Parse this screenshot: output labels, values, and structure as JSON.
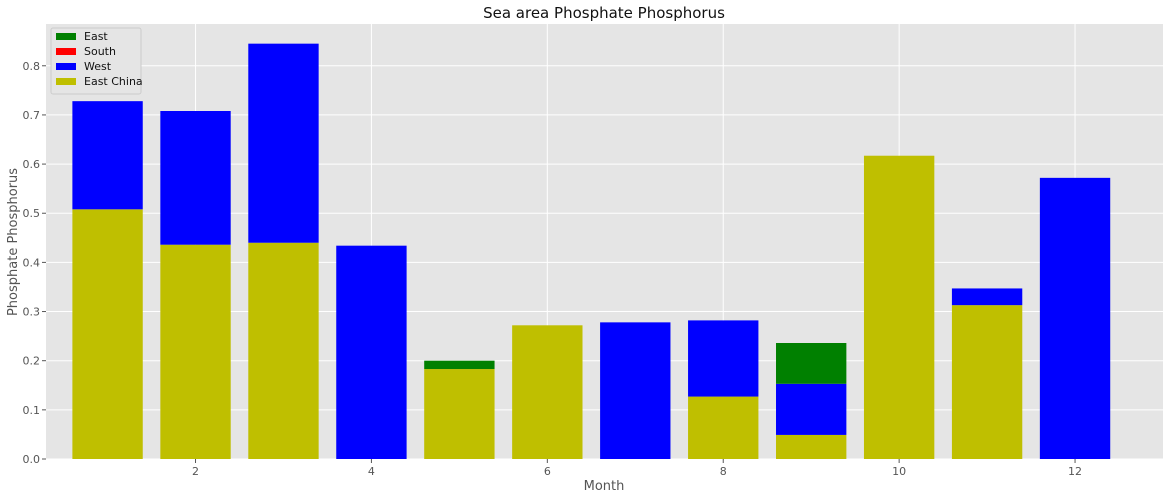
{
  "chart_data": {
    "type": "bar",
    "stacked": true,
    "title": "Sea area Phosphate Phosphorus",
    "xlabel": "Month",
    "ylabel": "Phosphate Phosphorus",
    "x": [
      1,
      2,
      3,
      4,
      5,
      6,
      7,
      8,
      9,
      10,
      11,
      12
    ],
    "xticks": [
      2,
      4,
      6,
      8,
      10,
      12
    ],
    "yticks": [
      0.0,
      0.1,
      0.2,
      0.3,
      0.4,
      0.5,
      0.6,
      0.7,
      0.8
    ],
    "xlim": [
      0.3,
      13.0
    ],
    "ylim": [
      0,
      0.885
    ],
    "grid": true,
    "legend_position": "upper-left",
    "series": [
      {
        "name": "East",
        "color": "#008000",
        "values": [
          0,
          0,
          0,
          0,
          0.017,
          0,
          0,
          0,
          0.083,
          0,
          0,
          0
        ]
      },
      {
        "name": "South",
        "color": "#ff0000",
        "values": [
          0,
          0,
          0,
          0,
          0,
          0,
          0,
          0,
          0,
          0,
          0,
          0
        ]
      },
      {
        "name": "West",
        "color": "#0000ff",
        "values": [
          0.22,
          0.272,
          0.405,
          0.434,
          0,
          0,
          0.278,
          0.155,
          0.104,
          0,
          0.034,
          0.572
        ]
      },
      {
        "name": "East China",
        "color": "#bfbf00",
        "values": [
          0.508,
          0.436,
          0.44,
          0,
          0.183,
          0.272,
          0,
          0.127,
          0.049,
          0.617,
          0.313,
          0
        ]
      }
    ],
    "stack_order_bottom_to_top": [
      "East China",
      "West",
      "South",
      "East"
    ]
  }
}
